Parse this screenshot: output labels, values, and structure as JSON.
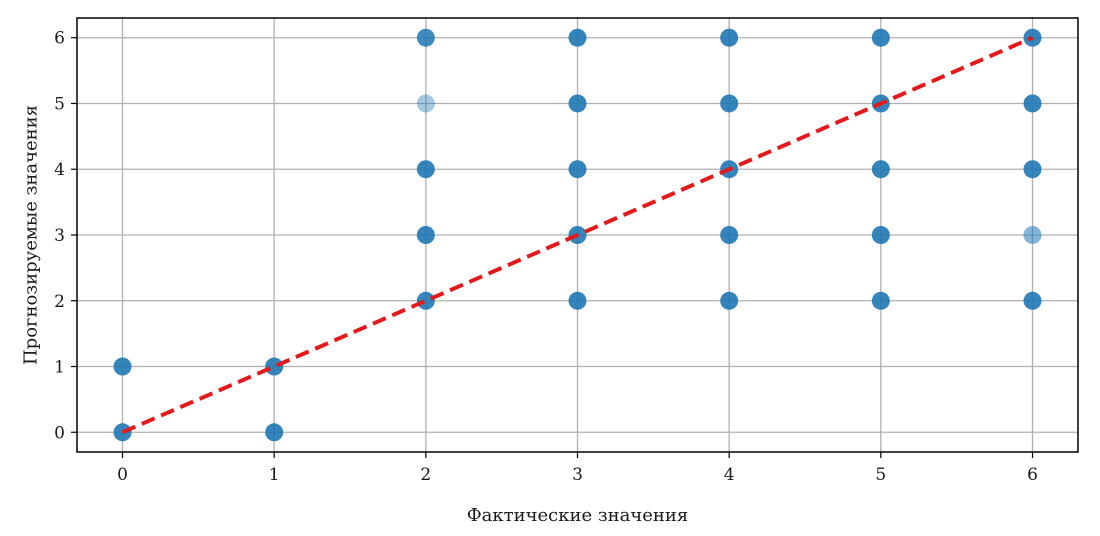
{
  "chart_data": {
    "type": "scatter",
    "xlabel": "Фактические значения",
    "ylabel": "Прогнозируемые значения",
    "xlim": [
      -0.3,
      6.3
    ],
    "ylim": [
      -0.3,
      6.3
    ],
    "xticks": [
      0,
      1,
      2,
      3,
      4,
      5,
      6
    ],
    "yticks": [
      0,
      1,
      2,
      3,
      4,
      5,
      6
    ],
    "grid": true,
    "colors": {
      "points": "#1f77b4",
      "reference_line": "#e31a1c"
    },
    "points": [
      {
        "x": 0,
        "y": 0,
        "opacity": 0.9
      },
      {
        "x": 0,
        "y": 1,
        "opacity": 0.9
      },
      {
        "x": 1,
        "y": 0,
        "opacity": 0.9
      },
      {
        "x": 1,
        "y": 1,
        "opacity": 0.9
      },
      {
        "x": 2,
        "y": 2,
        "opacity": 0.9
      },
      {
        "x": 2,
        "y": 3,
        "opacity": 0.9
      },
      {
        "x": 2,
        "y": 4,
        "opacity": 0.9
      },
      {
        "x": 2,
        "y": 5,
        "opacity": 0.4
      },
      {
        "x": 2,
        "y": 6,
        "opacity": 0.85
      },
      {
        "x": 3,
        "y": 2,
        "opacity": 0.9
      },
      {
        "x": 3,
        "y": 3,
        "opacity": 0.9
      },
      {
        "x": 3,
        "y": 4,
        "opacity": 0.9
      },
      {
        "x": 3,
        "y": 5,
        "opacity": 0.9
      },
      {
        "x": 3,
        "y": 6,
        "opacity": 0.9
      },
      {
        "x": 4,
        "y": 2,
        "opacity": 0.9
      },
      {
        "x": 4,
        "y": 3,
        "opacity": 0.9
      },
      {
        "x": 4,
        "y": 4,
        "opacity": 0.9
      },
      {
        "x": 4,
        "y": 5,
        "opacity": 0.9
      },
      {
        "x": 4,
        "y": 6,
        "opacity": 0.9
      },
      {
        "x": 5,
        "y": 2,
        "opacity": 0.9
      },
      {
        "x": 5,
        "y": 3,
        "opacity": 0.9
      },
      {
        "x": 5,
        "y": 4,
        "opacity": 0.9
      },
      {
        "x": 5,
        "y": 5,
        "opacity": 0.9
      },
      {
        "x": 5,
        "y": 6,
        "opacity": 0.9
      },
      {
        "x": 6,
        "y": 2,
        "opacity": 0.9
      },
      {
        "x": 6,
        "y": 3,
        "opacity": 0.55
      },
      {
        "x": 6,
        "y": 4,
        "opacity": 0.9
      },
      {
        "x": 6,
        "y": 5,
        "opacity": 0.9
      },
      {
        "x": 6,
        "y": 6,
        "opacity": 0.9
      }
    ],
    "reference_line": {
      "x": [
        0,
        6
      ],
      "y": [
        0,
        6
      ],
      "style": "dashed"
    }
  }
}
